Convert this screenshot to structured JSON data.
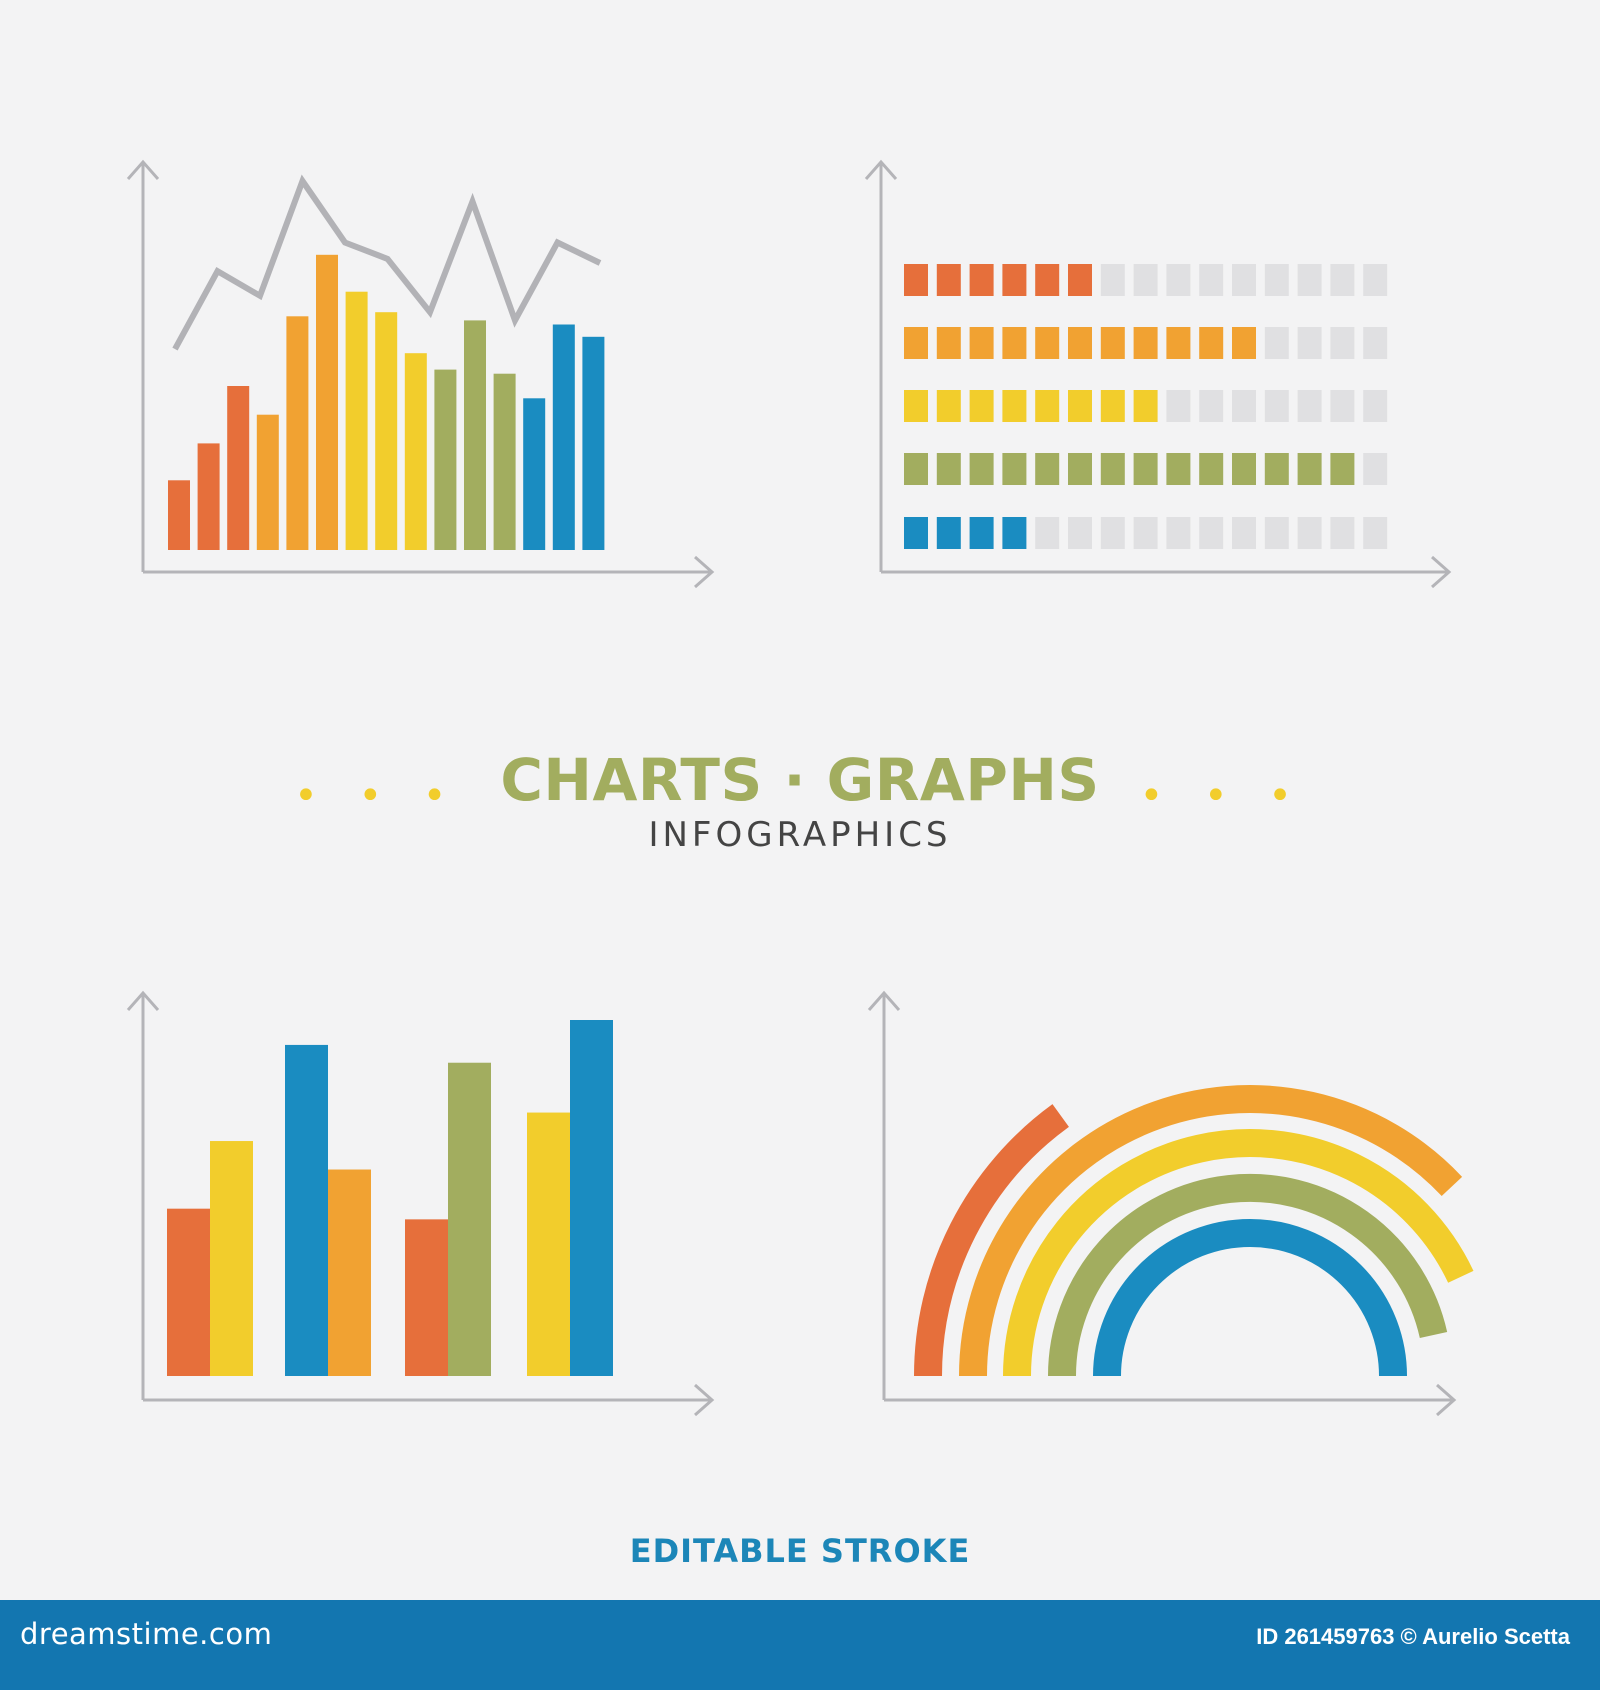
{
  "colors": {
    "orange_red": "#e66f3b",
    "orange": "#f1a232",
    "yellow": "#f2cd2c",
    "green": "#a2ad5f",
    "blue": "#1a8cc1",
    "axis": "#b4b4b8",
    "empty": "#e0e0e2",
    "footer": "#1376b0"
  },
  "header": {
    "title": "CHARTS · GRAPHS",
    "dots_left": "• • •",
    "dots_right": "• • •",
    "subtitle": "INFOGRAPHICS"
  },
  "footer": {
    "editable": "EDITABLE STROKE",
    "brand": "dreamstime.com",
    "credit": "ID 261459763 © Aurelio Scetta"
  },
  "chart_data": [
    {
      "type": "bar",
      "panel": "top-left",
      "values": [
        17,
        26,
        40,
        33,
        57,
        72,
        63,
        58,
        48,
        44,
        56,
        43,
        37,
        55,
        52
      ],
      "colors": [
        "orange_red",
        "orange_red",
        "orange_red",
        "orange",
        "orange",
        "orange",
        "yellow",
        "yellow",
        "yellow",
        "green",
        "green",
        "green",
        "blue",
        "blue",
        "blue"
      ],
      "line": [
        49,
        68,
        62,
        90,
        75,
        71,
        58,
        85,
        56,
        75,
        70
      ],
      "ylim": [
        0,
        100
      ]
    },
    {
      "type": "bar",
      "panel": "top-right",
      "orientation": "horizontal",
      "total_cells": 15,
      "values": [
        6,
        11,
        8,
        14,
        4
      ],
      "colors": [
        "orange_red",
        "orange",
        "yellow",
        "green",
        "blue"
      ]
    },
    {
      "type": "bar",
      "panel": "bottom-left",
      "groups": [
        {
          "values": [
            47,
            66
          ],
          "colors": [
            "orange_red",
            "yellow"
          ]
        },
        {
          "values": [
            93,
            58
          ],
          "colors": [
            "blue",
            "orange"
          ]
        },
        {
          "values": [
            44,
            88
          ],
          "colors": [
            "orange_red",
            "green"
          ]
        },
        {
          "values": [
            74,
            100
          ],
          "colors": [
            "yellow",
            "blue"
          ]
        }
      ],
      "ylim": [
        0,
        100
      ]
    },
    {
      "type": "pie",
      "panel": "bottom-right",
      "style": "concentric arcs",
      "arcs": [
        {
          "color": "orange_red",
          "percent": 30
        },
        {
          "color": "orange",
          "percent": 76
        },
        {
          "color": "yellow",
          "percent": 86
        },
        {
          "color": "green",
          "percent": 93
        },
        {
          "color": "blue",
          "percent": 100
        }
      ]
    }
  ]
}
